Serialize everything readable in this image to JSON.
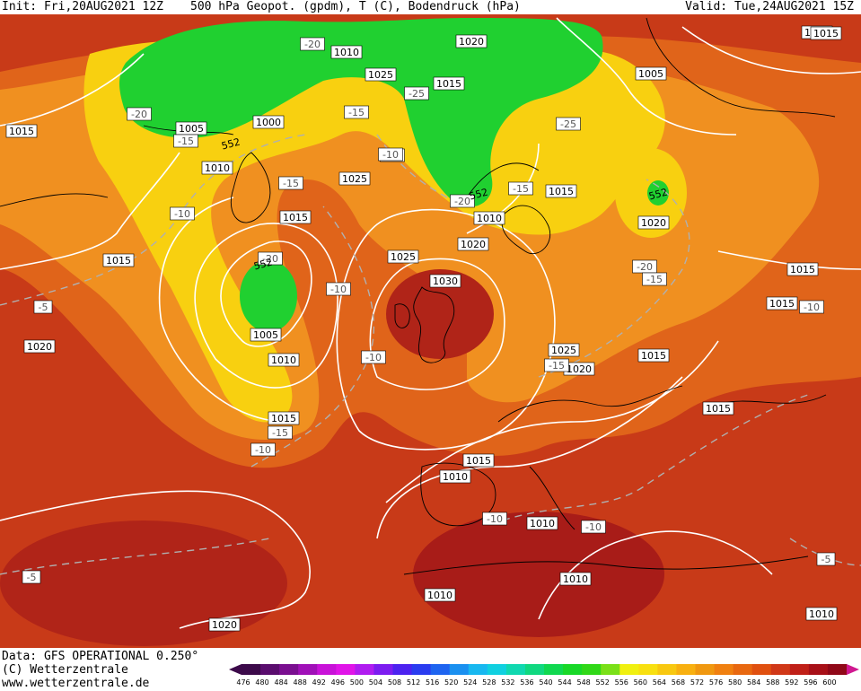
{
  "header": {
    "init": "Init: Fri,20AUG2021 12Z",
    "title": "500 hPa Geopot. (gpdm), T (C), Bodendruck (hPa)",
    "valid": "Valid: Tue,24AUG2021 15Z"
  },
  "footer": {
    "data_source": "Data: GFS OPERATIONAL 0.250°",
    "copyright": "(C) Wetterzentrale",
    "website": "www.wetterzentrale.de"
  },
  "color_scale": {
    "ticks": [
      "476",
      "480",
      "484",
      "488",
      "492",
      "496",
      "500",
      "504",
      "508",
      "512",
      "516",
      "520",
      "524",
      "528",
      "532",
      "536",
      "540",
      "544",
      "548",
      "552",
      "556",
      "560",
      "564",
      "568",
      "572",
      "576",
      "580",
      "584",
      "588",
      "592",
      "596",
      "600"
    ],
    "colors": [
      "#3c0a4a",
      "#5a0d6e",
      "#7a0f90",
      "#a010b8",
      "#c812d8",
      "#e014e8",
      "#b01cf0",
      "#7c1cf0",
      "#4c22f0",
      "#2a3cf0",
      "#1e64f0",
      "#1a90f0",
      "#18b8f0",
      "#10d0e0",
      "#10d8b0",
      "#10d880",
      "#10d850",
      "#18d828",
      "#30d818",
      "#7ae018",
      "#f0f010",
      "#f8e010",
      "#f8c810",
      "#f8b010",
      "#f09810",
      "#f08010",
      "#e86810",
      "#e05010",
      "#d03818",
      "#c02018",
      "#a81018",
      "#900818"
    ]
  },
  "map": {
    "pressure_labels": [
      {
        "text": "1015"
      },
      {
        "text": "1020"
      },
      {
        "text": "1015"
      },
      {
        "text": "1010"
      },
      {
        "text": "1005"
      },
      {
        "text": "1000"
      },
      {
        "text": "1010"
      },
      {
        "text": "1020"
      },
      {
        "text": "1015"
      },
      {
        "text": "1025"
      },
      {
        "text": "1015"
      },
      {
        "text": "1015"
      },
      {
        "text": "1020"
      },
      {
        "text": "1010"
      },
      {
        "text": "1025"
      },
      {
        "text": "1020"
      },
      {
        "text": "1025"
      },
      {
        "text": "1030"
      },
      {
        "text": "1005"
      },
      {
        "text": "1010"
      },
      {
        "text": "1015"
      },
      {
        "text": "1020"
      },
      {
        "text": "1015"
      },
      {
        "text": "1025"
      },
      {
        "text": "1020"
      },
      {
        "text": "1015"
      },
      {
        "text": "1015"
      },
      {
        "text": "1015"
      },
      {
        "text": "1010"
      },
      {
        "text": "1015"
      },
      {
        "text": "1010"
      },
      {
        "text": "1010"
      },
      {
        "text": "1010"
      },
      {
        "text": "1010"
      },
      {
        "text": "1020"
      },
      {
        "text": "1005"
      },
      {
        "text": "1015"
      }
    ],
    "temperature_labels": [
      {
        "text": "-20"
      },
      {
        "text": "-20"
      },
      {
        "text": "-15"
      },
      {
        "text": "-25"
      },
      {
        "text": "-15"
      },
      {
        "text": "-10"
      },
      {
        "text": "-25"
      },
      {
        "text": "-15"
      },
      {
        "text": "-20"
      },
      {
        "text": "-15"
      },
      {
        "text": "-10"
      },
      {
        "text": "-20"
      },
      {
        "text": "-10"
      },
      {
        "text": "-5"
      },
      {
        "text": "-10"
      },
      {
        "text": "-20"
      },
      {
        "text": "-15"
      },
      {
        "text": "-15"
      },
      {
        "text": "-10"
      },
      {
        "text": "-15"
      },
      {
        "text": "-10"
      },
      {
        "text": "-10"
      },
      {
        "text": "-10"
      },
      {
        "text": "-5"
      },
      {
        "text": "-5"
      },
      {
        "text": "-10"
      }
    ],
    "geopotential_labels": [
      {
        "text": "552"
      },
      {
        "text": "552"
      },
      {
        "text": "552"
      },
      {
        "text": "552"
      }
    ]
  }
}
